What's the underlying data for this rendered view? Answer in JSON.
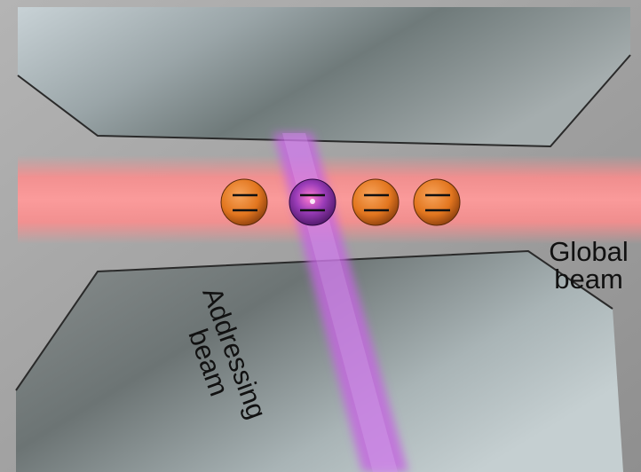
{
  "labels": {
    "global_beam": [
      "Global",
      "beam"
    ],
    "addressing_beam": [
      "Addressing",
      "beam"
    ]
  },
  "ions": {
    "count": 4,
    "addressed_index": 1,
    "normal_color": "#e2761f",
    "addressed_color": "#7b2a9a"
  },
  "colors": {
    "global_beam": "#ff8c8c",
    "addressing_beam": "#c466e0",
    "electrode": "#8c9598",
    "background": "#a2a2a2"
  }
}
